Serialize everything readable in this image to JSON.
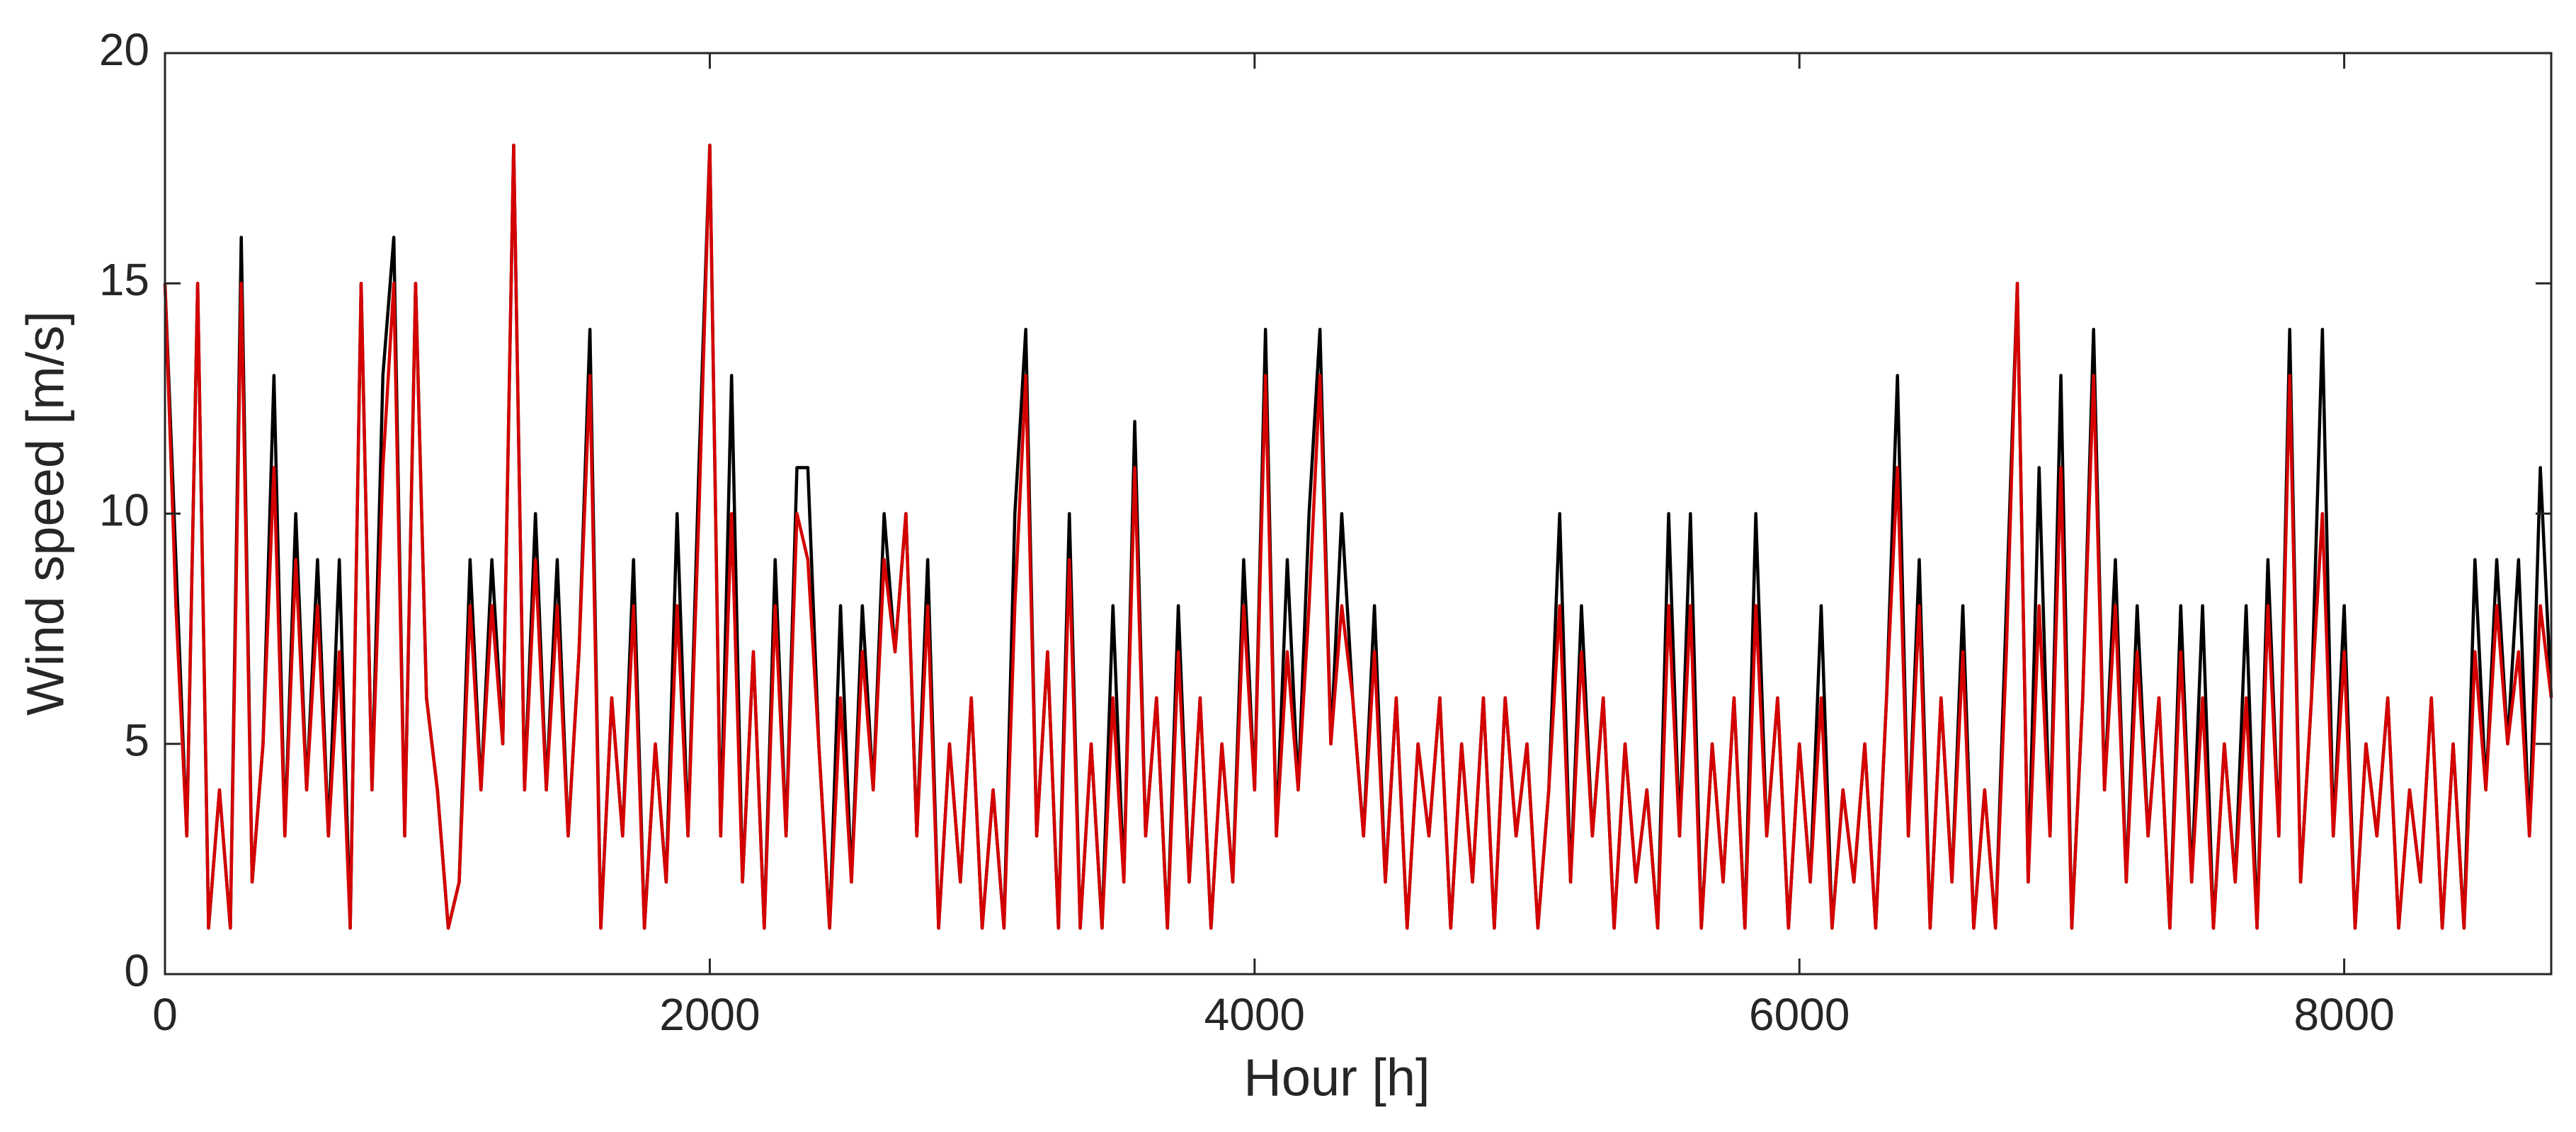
{
  "chart_data": {
    "type": "line",
    "xlabel": "Hour [h]",
    "ylabel": "Wind speed [m/s]",
    "xlim": [
      0,
      8760
    ],
    "ylim": [
      0,
      20
    ],
    "xticks": [
      0,
      2000,
      4000,
      6000,
      8000
    ],
    "yticks": [
      0,
      5,
      10,
      15,
      20
    ],
    "box": true,
    "x": [
      0,
      40,
      80,
      120,
      160,
      200,
      240,
      280,
      320,
      360,
      400,
      440,
      480,
      520,
      560,
      600,
      640,
      680,
      720,
      760,
      800,
      840,
      880,
      920,
      960,
      1000,
      1040,
      1080,
      1120,
      1160,
      1200,
      1240,
      1280,
      1320,
      1360,
      1400,
      1440,
      1480,
      1520,
      1560,
      1600,
      1640,
      1680,
      1720,
      1760,
      1800,
      1840,
      1880,
      1920,
      1960,
      2000,
      2040,
      2080,
      2120,
      2160,
      2200,
      2240,
      2280,
      2320,
      2360,
      2400,
      2440,
      2480,
      2520,
      2560,
      2600,
      2640,
      2680,
      2720,
      2760,
      2800,
      2840,
      2880,
      2920,
      2960,
      3000,
      3040,
      3080,
      3120,
      3160,
      3200,
      3240,
      3280,
      3320,
      3360,
      3400,
      3440,
      3480,
      3520,
      3560,
      3600,
      3640,
      3680,
      3720,
      3760,
      3800,
      3840,
      3880,
      3920,
      3960,
      4000,
      4040,
      4080,
      4120,
      4160,
      4200,
      4240,
      4280,
      4320,
      4360,
      4400,
      4440,
      4480,
      4520,
      4560,
      4600,
      4640,
      4680,
      4720,
      4760,
      4800,
      4840,
      4880,
      4920,
      4960,
      5000,
      5040,
      5080,
      5120,
      5160,
      5200,
      5240,
      5280,
      5320,
      5360,
      5400,
      5440,
      5480,
      5520,
      5560,
      5600,
      5640,
      5680,
      5720,
      5760,
      5800,
      5840,
      5880,
      5920,
      5960,
      6000,
      6040,
      6080,
      6120,
      6160,
      6200,
      6240,
      6280,
      6320,
      6360,
      6400,
      6440,
      6480,
      6520,
      6560,
      6600,
      6640,
      6680,
      6720,
      6760,
      6800,
      6840,
      6880,
      6920,
      6960,
      7000,
      7040,
      7080,
      7120,
      7160,
      7200,
      7240,
      7280,
      7320,
      7360,
      7400,
      7440,
      7480,
      7520,
      7560,
      7600,
      7640,
      7680,
      7720,
      7760,
      7800,
      7840,
      7880,
      7920,
      7960,
      8000,
      8040,
      8080,
      8120,
      8160,
      8200,
      8240,
      8280,
      8320,
      8360,
      8400,
      8440,
      8480,
      8520,
      8560,
      8600,
      8640,
      8680,
      8720,
      8760
    ],
    "series": [
      {
        "color": "#000000",
        "values": [
          15,
          9,
          3,
          15,
          1,
          4,
          1,
          16,
          2,
          5,
          13,
          3,
          10,
          4,
          9,
          3,
          9,
          1,
          15,
          4,
          13,
          16,
          3,
          15,
          6,
          4,
          1,
          2,
          9,
          4,
          9,
          5,
          18,
          4,
          10,
          4,
          9,
          3,
          7,
          14,
          1,
          6,
          3,
          9,
          1,
          5,
          2,
          10,
          3,
          11,
          18,
          3,
          13,
          2,
          7,
          1,
          9,
          3,
          11,
          11,
          5,
          1,
          8,
          2,
          8,
          4,
          10,
          7,
          10,
          3,
          9,
          1,
          5,
          2,
          6,
          1,
          4,
          1,
          10,
          14,
          3,
          7,
          1,
          10,
          1,
          5,
          1,
          8,
          2,
          12,
          3,
          6,
          1,
          8,
          2,
          6,
          1,
          5,
          2,
          9,
          4,
          14,
          3,
          9,
          4,
          10,
          14,
          5,
          10,
          6,
          3,
          8,
          2,
          6,
          1,
          5,
          3,
          6,
          1,
          5,
          2,
          6,
          1,
          6,
          3,
          5,
          1,
          4,
          10,
          2,
          8,
          3,
          6,
          1,
          5,
          2,
          4,
          1,
          10,
          3,
          10,
          1,
          5,
          2,
          6,
          1,
          10,
          3,
          6,
          1,
          5,
          2,
          8,
          1,
          4,
          2,
          5,
          1,
          6,
          13,
          3,
          9,
          1,
          6,
          2,
          8,
          1,
          4,
          1,
          8,
          15,
          2,
          11,
          3,
          13,
          1,
          6,
          14,
          4,
          9,
          2,
          8,
          3,
          6,
          1,
          8,
          2,
          8,
          1,
          5,
          2,
          8,
          1,
          9,
          3,
          14,
          2,
          6,
          14,
          3,
          8,
          1,
          5,
          3,
          6,
          1,
          4,
          2,
          6,
          1,
          5,
          1,
          9,
          4,
          9,
          5,
          9,
          3,
          11,
          6
        ]
      },
      {
        "color": "#d40000",
        "values": [
          15,
          8,
          3,
          15,
          1,
          4,
          1,
          15,
          2,
          5,
          11,
          3,
          9,
          4,
          8,
          3,
          7,
          1,
          15,
          4,
          11,
          15,
          3,
          15,
          6,
          4,
          1,
          2,
          8,
          4,
          8,
          5,
          18,
          4,
          9,
          4,
          8,
          3,
          7,
          13,
          1,
          6,
          3,
          8,
          1,
          5,
          2,
          8,
          3,
          10,
          18,
          3,
          10,
          2,
          7,
          1,
          8,
          3,
          10,
          9,
          5,
          1,
          6,
          2,
          7,
          4,
          9,
          7,
          10,
          3,
          8,
          1,
          5,
          2,
          6,
          1,
          4,
          1,
          8,
          13,
          3,
          7,
          1,
          9,
          1,
          5,
          1,
          6,
          2,
          11,
          3,
          6,
          1,
          7,
          2,
          6,
          1,
          5,
          2,
          8,
          4,
          13,
          3,
          7,
          4,
          8,
          13,
          5,
          8,
          6,
          3,
          7,
          2,
          6,
          1,
          5,
          3,
          6,
          1,
          5,
          2,
          6,
          1,
          6,
          3,
          5,
          1,
          4,
          8,
          2,
          7,
          3,
          6,
          1,
          5,
          2,
          4,
          1,
          8,
          3,
          8,
          1,
          5,
          2,
          6,
          1,
          8,
          3,
          6,
          1,
          5,
          2,
          6,
          1,
          4,
          2,
          5,
          1,
          6,
          11,
          3,
          8,
          1,
          6,
          2,
          7,
          1,
          4,
          1,
          7,
          15,
          2,
          8,
          3,
          11,
          1,
          6,
          13,
          4,
          8,
          2,
          7,
          3,
          6,
          1,
          7,
          2,
          6,
          1,
          5,
          2,
          6,
          1,
          8,
          3,
          13,
          2,
          6,
          10,
          3,
          7,
          1,
          5,
          3,
          6,
          1,
          4,
          2,
          6,
          1,
          5,
          1,
          7,
          4,
          8,
          5,
          7,
          3,
          8,
          6
        ]
      }
    ]
  }
}
